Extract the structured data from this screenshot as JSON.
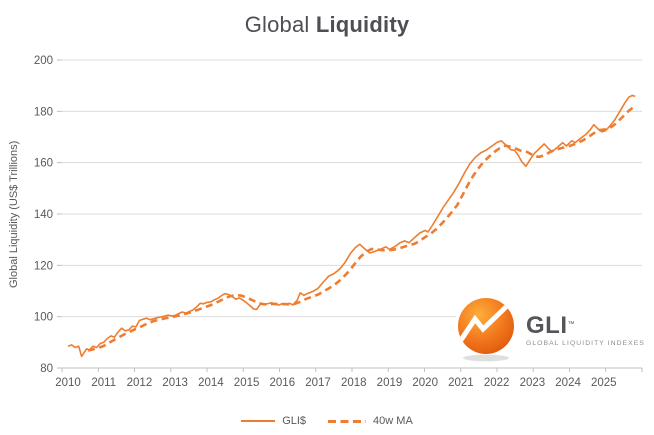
{
  "title": {
    "regular": "Global ",
    "bold": "Liquidity"
  },
  "y_axis": {
    "label": "Global Liquidity (US$ Trillions)",
    "ticks": [
      80,
      100,
      120,
      140,
      160,
      180,
      200
    ]
  },
  "x_axis": {
    "ticks": [
      "2010",
      "2011",
      "2012",
      "2013",
      "2014",
      "2015",
      "2016",
      "2017",
      "2018",
      "2019",
      "2020",
      "2021",
      "2022",
      "2023",
      "2024",
      "2025"
    ]
  },
  "legend": {
    "items": [
      {
        "label": "GLI$",
        "style": "solid"
      },
      {
        "label": "40w MA",
        "style": "dashed"
      }
    ]
  },
  "logo": {
    "text": "GLI",
    "tm": "™",
    "subtext": "GLOBAL LIQUIDITY INDEXES",
    "ball_icon": "orange-sphere-with-white-trend-arrow"
  },
  "colors": {
    "series_orange": "#ED7D31",
    "grid": "#DCDCDC",
    "axis_line": "#BFBFBF",
    "axis_text": "#595959",
    "title_text": "#4D4F54",
    "logo_orange_light": "#FCAF3B",
    "logo_orange_mid": "#F47B20",
    "logo_orange_dark": "#E05A0C"
  },
  "chart_data": {
    "type": "line",
    "title": "Global Liquidity",
    "xlabel": "",
    "ylabel": "Global Liquidity (US$ Trillions)",
    "xlim": [
      2010,
      2026
    ],
    "ylim": [
      80,
      200
    ],
    "grid": "horizontal",
    "legend_position": "bottom",
    "series": [
      {
        "name": "GLI$",
        "dash": false,
        "width": 1.6,
        "points": [
          [
            2010.0,
            88.5
          ],
          [
            2010.1,
            89
          ],
          [
            2010.2,
            88
          ],
          [
            2010.3,
            88.5
          ],
          [
            2010.38,
            84.5
          ],
          [
            2010.45,
            86
          ],
          [
            2010.52,
            87.5
          ],
          [
            2010.6,
            87
          ],
          [
            2010.7,
            88.5
          ],
          [
            2010.8,
            88
          ],
          [
            2010.9,
            89.5
          ],
          [
            2011.0,
            90
          ],
          [
            2011.1,
            91.5
          ],
          [
            2011.2,
            92.5
          ],
          [
            2011.3,
            92
          ],
          [
            2011.4,
            94
          ],
          [
            2011.5,
            95.5
          ],
          [
            2011.6,
            94.5
          ],
          [
            2011.7,
            94.8
          ],
          [
            2011.8,
            96.3
          ],
          [
            2011.9,
            96
          ],
          [
            2012.0,
            98.5
          ],
          [
            2012.1,
            99
          ],
          [
            2012.2,
            99.4
          ],
          [
            2012.3,
            98.8
          ],
          [
            2012.4,
            99.2
          ],
          [
            2012.5,
            99.6
          ],
          [
            2012.6,
            99.9
          ],
          [
            2012.7,
            100.2
          ],
          [
            2012.8,
            100.6
          ],
          [
            2012.9,
            100.3
          ],
          [
            2013.0,
            100.5
          ],
          [
            2013.1,
            101.2
          ],
          [
            2013.2,
            101.8
          ],
          [
            2013.3,
            101.4
          ],
          [
            2013.4,
            102
          ],
          [
            2013.5,
            102.6
          ],
          [
            2013.6,
            103.8
          ],
          [
            2013.7,
            105.2
          ],
          [
            2013.8,
            105
          ],
          [
            2013.9,
            105.6
          ],
          [
            2014.0,
            105.8
          ],
          [
            2014.1,
            106.6
          ],
          [
            2014.2,
            107.2
          ],
          [
            2014.3,
            108.2
          ],
          [
            2014.4,
            109
          ],
          [
            2014.5,
            108.6
          ],
          [
            2014.6,
            107.8
          ],
          [
            2014.7,
            106.8
          ],
          [
            2014.8,
            107.3
          ],
          [
            2014.9,
            106.4
          ],
          [
            2015.0,
            105.4
          ],
          [
            2015.1,
            104.2
          ],
          [
            2015.2,
            103
          ],
          [
            2015.28,
            102.8
          ],
          [
            2015.4,
            105.2
          ],
          [
            2015.5,
            104.7
          ],
          [
            2015.6,
            105.1
          ],
          [
            2015.7,
            105.4
          ],
          [
            2015.8,
            104.8
          ],
          [
            2015.9,
            104.5
          ],
          [
            2016.0,
            105.1
          ],
          [
            2016.1,
            104.8
          ],
          [
            2016.2,
            105.2
          ],
          [
            2016.3,
            104.6
          ],
          [
            2016.42,
            106.5
          ],
          [
            2016.5,
            109.3
          ],
          [
            2016.6,
            108.3
          ],
          [
            2016.7,
            109
          ],
          [
            2016.85,
            109.8
          ],
          [
            2017.0,
            111
          ],
          [
            2017.15,
            113.5
          ],
          [
            2017.3,
            115.8
          ],
          [
            2017.45,
            116.8
          ],
          [
            2017.6,
            118.5
          ],
          [
            2017.75,
            121
          ],
          [
            2017.9,
            124.5
          ],
          [
            2018.05,
            127
          ],
          [
            2018.17,
            128.2
          ],
          [
            2018.3,
            126.5
          ],
          [
            2018.45,
            124.8
          ],
          [
            2018.6,
            125.5
          ],
          [
            2018.75,
            126.3
          ],
          [
            2018.9,
            127.2
          ],
          [
            2019.0,
            126.2
          ],
          [
            2019.15,
            127.3
          ],
          [
            2019.3,
            128.8
          ],
          [
            2019.42,
            129.5
          ],
          [
            2019.55,
            128.8
          ],
          [
            2019.7,
            130.8
          ],
          [
            2019.85,
            132.6
          ],
          [
            2020.0,
            133.6
          ],
          [
            2020.08,
            133
          ],
          [
            2020.2,
            135.5
          ],
          [
            2020.35,
            139
          ],
          [
            2020.5,
            142.5
          ],
          [
            2020.65,
            145.5
          ],
          [
            2020.8,
            148.5
          ],
          [
            2020.95,
            152
          ],
          [
            2021.1,
            156
          ],
          [
            2021.25,
            159.5
          ],
          [
            2021.4,
            162
          ],
          [
            2021.55,
            163.8
          ],
          [
            2021.7,
            164.8
          ],
          [
            2021.85,
            166.3
          ],
          [
            2022.0,
            167.8
          ],
          [
            2022.13,
            168.5
          ],
          [
            2022.25,
            167
          ],
          [
            2022.4,
            165
          ],
          [
            2022.5,
            164.8
          ],
          [
            2022.6,
            163
          ],
          [
            2022.7,
            160.5
          ],
          [
            2022.82,
            158.6
          ],
          [
            2022.95,
            161.5
          ],
          [
            2023.05,
            163.5
          ],
          [
            2023.2,
            165.5
          ],
          [
            2023.33,
            167.3
          ],
          [
            2023.45,
            165.5
          ],
          [
            2023.55,
            164.3
          ],
          [
            2023.7,
            166
          ],
          [
            2023.85,
            167.8
          ],
          [
            2023.95,
            166.5
          ],
          [
            2024.1,
            168.5
          ],
          [
            2024.2,
            167.8
          ],
          [
            2024.35,
            169.5
          ],
          [
            2024.5,
            171
          ],
          [
            2024.62,
            172.8
          ],
          [
            2024.72,
            174.8
          ],
          [
            2024.85,
            173
          ],
          [
            2024.95,
            172
          ],
          [
            2025.05,
            172.5
          ],
          [
            2025.15,
            174
          ],
          [
            2025.3,
            176.5
          ],
          [
            2025.45,
            180
          ],
          [
            2025.6,
            183.5
          ],
          [
            2025.7,
            185.5
          ],
          [
            2025.8,
            186.2
          ],
          [
            2025.88,
            185.8
          ]
        ]
      },
      {
        "name": "40w MA",
        "dash": true,
        "width": 2.6,
        "points": [
          [
            2010.56,
            86.8
          ],
          [
            2010.7,
            87.3
          ],
          [
            2010.85,
            87.8
          ],
          [
            2011.0,
            88.6
          ],
          [
            2011.2,
            90.2
          ],
          [
            2011.4,
            91.8
          ],
          [
            2011.6,
            93.3
          ],
          [
            2011.8,
            94.6
          ],
          [
            2012.0,
            95.8
          ],
          [
            2012.2,
            97.2
          ],
          [
            2012.4,
            98.3
          ],
          [
            2012.6,
            99
          ],
          [
            2012.8,
            99.6
          ],
          [
            2013.0,
            100.1
          ],
          [
            2013.2,
            100.8
          ],
          [
            2013.4,
            101.6
          ],
          [
            2013.6,
            102.5
          ],
          [
            2013.8,
            103.5
          ],
          [
            2014.0,
            104.5
          ],
          [
            2014.2,
            105.8
          ],
          [
            2014.4,
            107.2
          ],
          [
            2014.55,
            108
          ],
          [
            2014.7,
            108.4
          ],
          [
            2014.85,
            108.2
          ],
          [
            2015.0,
            107.5
          ],
          [
            2015.15,
            106.5
          ],
          [
            2015.3,
            105.5
          ],
          [
            2015.45,
            104.9
          ],
          [
            2015.6,
            104.7
          ],
          [
            2015.75,
            105
          ],
          [
            2015.9,
            104.9
          ],
          [
            2016.05,
            104.9
          ],
          [
            2016.2,
            104.8
          ],
          [
            2016.35,
            105
          ],
          [
            2016.5,
            105.8
          ],
          [
            2016.65,
            106.8
          ],
          [
            2016.8,
            107.6
          ],
          [
            2017.0,
            108.6
          ],
          [
            2017.15,
            109.8
          ],
          [
            2017.3,
            111
          ],
          [
            2017.45,
            112.3
          ],
          [
            2017.6,
            114
          ],
          [
            2017.75,
            116
          ],
          [
            2017.9,
            118.3
          ],
          [
            2018.05,
            121
          ],
          [
            2018.2,
            123.5
          ],
          [
            2018.35,
            125.3
          ],
          [
            2018.5,
            126.4
          ],
          [
            2018.65,
            126.2
          ],
          [
            2018.8,
            125.9
          ],
          [
            2018.95,
            125.8
          ],
          [
            2019.1,
            126.1
          ],
          [
            2019.25,
            126.5
          ],
          [
            2019.4,
            127.2
          ],
          [
            2019.55,
            127.8
          ],
          [
            2019.7,
            128.4
          ],
          [
            2019.85,
            129.5
          ],
          [
            2020.0,
            131
          ],
          [
            2020.15,
            132.3
          ],
          [
            2020.3,
            134
          ],
          [
            2020.5,
            136.8
          ],
          [
            2020.7,
            140
          ],
          [
            2020.9,
            143.5
          ],
          [
            2021.05,
            147.5
          ],
          [
            2021.2,
            151.5
          ],
          [
            2021.35,
            155
          ],
          [
            2021.5,
            158
          ],
          [
            2021.65,
            160.5
          ],
          [
            2021.8,
            162.5
          ],
          [
            2021.95,
            164.3
          ],
          [
            2022.1,
            165.8
          ],
          [
            2022.25,
            166.6
          ],
          [
            2022.4,
            166.2
          ],
          [
            2022.55,
            165.4
          ],
          [
            2022.7,
            164.5
          ],
          [
            2022.85,
            164.2
          ],
          [
            2023.0,
            163
          ],
          [
            2023.1,
            162.4
          ],
          [
            2023.2,
            162.3
          ],
          [
            2023.35,
            163
          ],
          [
            2023.5,
            164.2
          ],
          [
            2023.65,
            165
          ],
          [
            2023.8,
            165.6
          ],
          [
            2023.95,
            166.2
          ],
          [
            2024.1,
            166.8
          ],
          [
            2024.25,
            167.6
          ],
          [
            2024.4,
            168.6
          ],
          [
            2024.55,
            169.8
          ],
          [
            2024.7,
            171.3
          ],
          [
            2024.85,
            172.6
          ],
          [
            2025.0,
            172.9
          ],
          [
            2025.15,
            173.4
          ],
          [
            2025.3,
            174.8
          ],
          [
            2025.45,
            176.8
          ],
          [
            2025.6,
            178.8
          ],
          [
            2025.7,
            180.2
          ],
          [
            2025.8,
            181.3
          ],
          [
            2025.88,
            181.8
          ]
        ]
      }
    ]
  }
}
